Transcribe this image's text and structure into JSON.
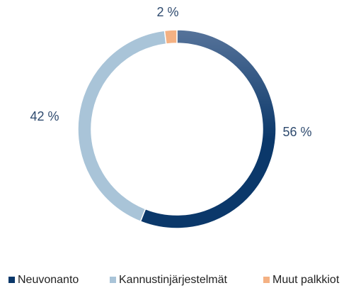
{
  "chart_data": {
    "type": "donut",
    "categories": [
      "Neuvonanto",
      "Kannustinjärjestelmät",
      "Muut palkkiot"
    ],
    "values": [
      56,
      42,
      2
    ],
    "value_labels": [
      "56 %",
      "42 %",
      "2 %"
    ],
    "colors": [
      "#0b386a",
      "#a9c4d8",
      "#f4b183"
    ],
    "legend": "bottom"
  }
}
